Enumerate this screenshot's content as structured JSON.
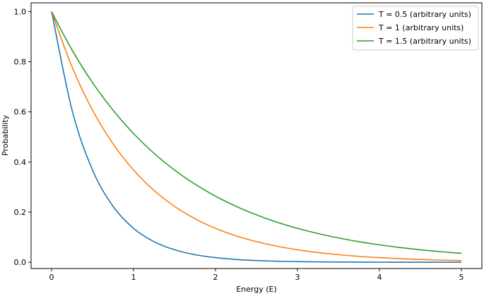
{
  "chart_data": {
    "type": "line",
    "title": "",
    "xlabel": "Energy (E)",
    "ylabel": "Probability",
    "xlim": [
      -0.25,
      5.25
    ],
    "ylim": [
      -0.025,
      1.035
    ],
    "xticks": [
      0,
      1,
      2,
      3,
      4,
      5
    ],
    "xtick_labels": [
      "0",
      "1",
      "2",
      "3",
      "4",
      "5"
    ],
    "yticks": [
      0.0,
      0.2,
      0.4,
      0.6,
      0.8,
      1.0
    ],
    "ytick_labels": [
      "0.0",
      "0.2",
      "0.4",
      "0.6",
      "0.8",
      "1.0"
    ],
    "grid": false,
    "legend_position": "top-right",
    "x": [
      0,
      0.25,
      0.5,
      0.75,
      1.0,
      1.25,
      1.5,
      1.75,
      2.0,
      2.25,
      2.5,
      2.75,
      3.0,
      3.25,
      3.5,
      3.75,
      4.0,
      4.25,
      4.5,
      4.75,
      5.0
    ],
    "series": [
      {
        "name": "T = 0.5 (arbitrary units)",
        "color": "#1f77b4",
        "values": [
          1.0,
          0.6065,
          0.3679,
          0.2231,
          0.1353,
          0.0821,
          0.0498,
          0.0302,
          0.0183,
          0.0111,
          0.0067,
          0.0041,
          0.0025,
          0.0015,
          0.0009,
          0.0006,
          0.0003,
          0.0002,
          0.0001,
          0.0001,
          0.0
        ]
      },
      {
        "name": "T = 1 (arbitrary units)",
        "color": "#ff7f0e",
        "values": [
          1.0,
          0.7788,
          0.6065,
          0.4724,
          0.3679,
          0.2865,
          0.2231,
          0.1738,
          0.1353,
          0.1054,
          0.0821,
          0.0639,
          0.0498,
          0.0388,
          0.0302,
          0.0235,
          0.0183,
          0.0143,
          0.0111,
          0.0087,
          0.0067
        ]
      },
      {
        "name": "T = 1.5 (arbitrary units)",
        "color": "#2ca02c",
        "values": [
          1.0,
          0.8465,
          0.7165,
          0.6065,
          0.5134,
          0.4346,
          0.3679,
          0.3114,
          0.2636,
          0.2231,
          0.1889,
          0.1599,
          0.1353,
          0.1146,
          0.097,
          0.0821,
          0.0695,
          0.0588,
          0.0498,
          0.0421,
          0.0357
        ]
      }
    ]
  }
}
